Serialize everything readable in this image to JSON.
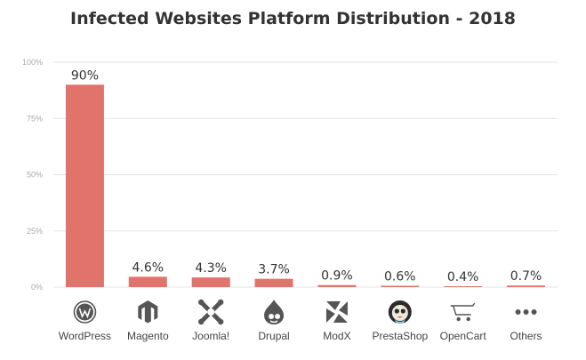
{
  "chart_data": {
    "type": "bar",
    "title": "Infected Websites Platform Distribution - 2018",
    "categories": [
      "WordPress",
      "Magento",
      "Joomla!",
      "Drupal",
      "ModX",
      "PrestaShop",
      "OpenCart",
      "Others"
    ],
    "values": [
      90,
      4.6,
      4.3,
      3.7,
      0.9,
      0.6,
      0.4,
      0.7
    ],
    "data_labels": [
      "90%",
      "4.6%",
      "4.3%",
      "3.7%",
      "0.9%",
      "0.6%",
      "0.4%",
      "0.7%"
    ],
    "icons": [
      "wordpress-icon",
      "magento-icon",
      "joomla-icon",
      "drupal-icon",
      "modx-icon",
      "prestashop-icon",
      "opencart-icon",
      "others-icon"
    ],
    "ylim": [
      0,
      100
    ],
    "yticks": [
      0,
      25,
      50,
      75,
      100
    ],
    "ytick_labels": [
      "0%",
      "25%",
      "50%",
      "75%",
      "100%"
    ],
    "xlabel": "",
    "ylabel": "",
    "grid": true,
    "colors": {
      "bar": "#e0736a",
      "grid": "#e3e3e3",
      "icon": "#555555"
    }
  }
}
